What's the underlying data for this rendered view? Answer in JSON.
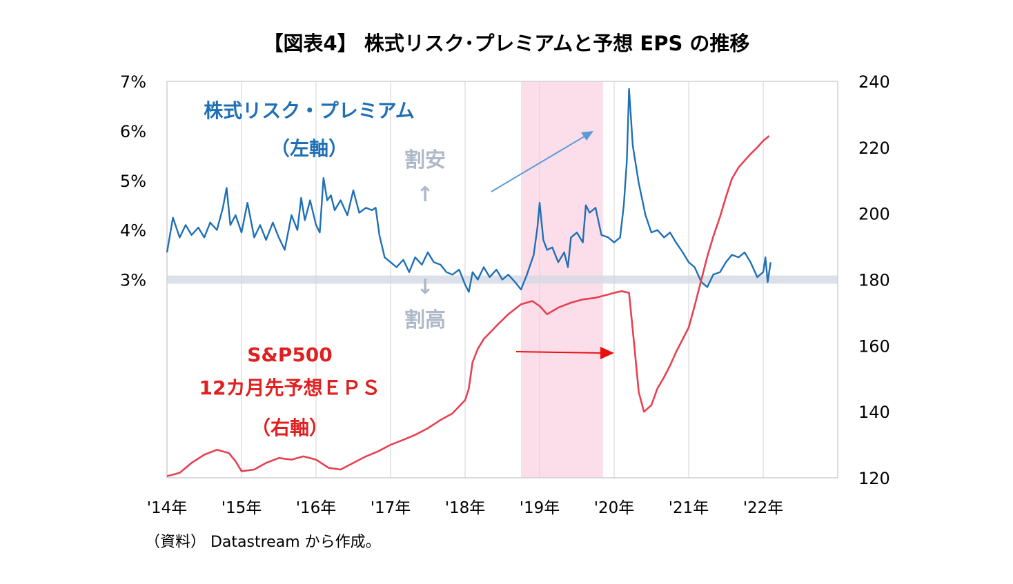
{
  "title": "【図表4】 株式リスク･プレミアムと予想 EPS の推移",
  "source": "（資料） Datastream から作成。",
  "colors": {
    "erp": "#1f6fb6",
    "eps": "#e84050",
    "shade": "#fbd8e8",
    "band": "#d3d9e4",
    "arrow_blue": "#5b9bd5",
    "arrow_red": "#e81010",
    "annotation_gray": "#aeb8c8"
  },
  "annotations": {
    "erp_name_1": "株式リスク・プレミアム",
    "erp_name_2": "（左軸）",
    "eps_name_1": "S&P500",
    "eps_name_2": "12カ月先予想ＥＰＳ",
    "eps_name_3": "（右軸）",
    "cheap_label": "割安",
    "cheap_arrow": "↑",
    "expensive_arrow": "↓",
    "expensive_label": "割高"
  },
  "chart_data": {
    "type": "line",
    "title": "【図表4】 株式リスク･プレミアムと予想 EPS の推移",
    "x_ticks": [
      "'14年",
      "'15年",
      "'16年",
      "'17年",
      "'18年",
      "'19年",
      "'20年",
      "'21年",
      "'22年"
    ],
    "xlim": [
      2014.0,
      2023.0
    ],
    "y_left_ticks": [
      "7%",
      "6%",
      "5%",
      "4%",
      "3%"
    ],
    "y_left_range": [
      -1,
      7
    ],
    "y_right_ticks": [
      "240",
      "220",
      "200",
      "180",
      "160",
      "140",
      "120"
    ],
    "y_right_range": [
      120,
      240
    ],
    "reference_band_y_left": 3.0,
    "shaded_period": [
      2018.75,
      2019.85
    ],
    "grid": "vertical",
    "series": [
      {
        "name": "株式リスク・プレミアム",
        "axis": "left",
        "points": [
          [
            2014.0,
            3.55
          ],
          [
            2014.08,
            4.25
          ],
          [
            2014.17,
            3.85
          ],
          [
            2014.25,
            4.1
          ],
          [
            2014.33,
            3.9
          ],
          [
            2014.42,
            4.05
          ],
          [
            2014.5,
            3.85
          ],
          [
            2014.58,
            4.15
          ],
          [
            2014.67,
            4.0
          ],
          [
            2014.75,
            4.45
          ],
          [
            2014.8,
            4.85
          ],
          [
            2014.85,
            4.1
          ],
          [
            2014.92,
            4.3
          ],
          [
            2015.0,
            3.95
          ],
          [
            2015.08,
            4.55
          ],
          [
            2015.17,
            3.85
          ],
          [
            2015.25,
            4.1
          ],
          [
            2015.33,
            3.8
          ],
          [
            2015.42,
            4.15
          ],
          [
            2015.5,
            3.85
          ],
          [
            2015.58,
            3.6
          ],
          [
            2015.67,
            4.3
          ],
          [
            2015.75,
            4.0
          ],
          [
            2015.8,
            4.65
          ],
          [
            2015.85,
            4.2
          ],
          [
            2015.92,
            4.6
          ],
          [
            2016.0,
            4.1
          ],
          [
            2016.05,
            3.95
          ],
          [
            2016.1,
            5.05
          ],
          [
            2016.15,
            4.6
          ],
          [
            2016.2,
            4.7
          ],
          [
            2016.25,
            4.4
          ],
          [
            2016.33,
            4.6
          ],
          [
            2016.42,
            4.3
          ],
          [
            2016.5,
            4.8
          ],
          [
            2016.58,
            4.35
          ],
          [
            2016.67,
            4.45
          ],
          [
            2016.75,
            4.4
          ],
          [
            2016.8,
            4.45
          ],
          [
            2016.85,
            3.9
          ],
          [
            2016.92,
            3.45
          ],
          [
            2017.0,
            3.35
          ],
          [
            2017.08,
            3.25
          ],
          [
            2017.17,
            3.4
          ],
          [
            2017.25,
            3.15
          ],
          [
            2017.33,
            3.45
          ],
          [
            2017.42,
            3.3
          ],
          [
            2017.5,
            3.55
          ],
          [
            2017.58,
            3.35
          ],
          [
            2017.67,
            3.3
          ],
          [
            2017.75,
            3.15
          ],
          [
            2017.83,
            3.1
          ],
          [
            2017.92,
            3.2
          ],
          [
            2018.0,
            2.9
          ],
          [
            2018.05,
            2.75
          ],
          [
            2018.1,
            3.15
          ],
          [
            2018.17,
            3.0
          ],
          [
            2018.25,
            3.25
          ],
          [
            2018.33,
            3.05
          ],
          [
            2018.42,
            3.2
          ],
          [
            2018.5,
            3.0
          ],
          [
            2018.58,
            3.1
          ],
          [
            2018.67,
            2.95
          ],
          [
            2018.75,
            2.8
          ],
          [
            2018.83,
            3.1
          ],
          [
            2018.92,
            3.5
          ],
          [
            2018.97,
            4.05
          ],
          [
            2019.0,
            4.55
          ],
          [
            2019.05,
            3.8
          ],
          [
            2019.1,
            3.6
          ],
          [
            2019.17,
            3.65
          ],
          [
            2019.25,
            3.35
          ],
          [
            2019.33,
            3.55
          ],
          [
            2019.38,
            3.25
          ],
          [
            2019.42,
            3.85
          ],
          [
            2019.5,
            3.95
          ],
          [
            2019.58,
            3.75
          ],
          [
            2019.62,
            4.5
          ],
          [
            2019.67,
            4.35
          ],
          [
            2019.75,
            4.45
          ],
          [
            2019.83,
            3.9
          ],
          [
            2019.92,
            3.85
          ],
          [
            2020.0,
            3.75
          ],
          [
            2020.08,
            3.85
          ],
          [
            2020.13,
            4.5
          ],
          [
            2020.17,
            5.4
          ],
          [
            2020.2,
            6.85
          ],
          [
            2020.25,
            5.7
          ],
          [
            2020.33,
            4.95
          ],
          [
            2020.42,
            4.3
          ],
          [
            2020.5,
            3.95
          ],
          [
            2020.58,
            4.0
          ],
          [
            2020.67,
            3.85
          ],
          [
            2020.75,
            3.95
          ],
          [
            2020.83,
            3.75
          ],
          [
            2020.92,
            3.55
          ],
          [
            2021.0,
            3.35
          ],
          [
            2021.08,
            3.25
          ],
          [
            2021.17,
            2.95
          ],
          [
            2021.25,
            2.85
          ],
          [
            2021.33,
            3.1
          ],
          [
            2021.42,
            3.15
          ],
          [
            2021.5,
            3.35
          ],
          [
            2021.58,
            3.5
          ],
          [
            2021.67,
            3.45
          ],
          [
            2021.75,
            3.55
          ],
          [
            2021.83,
            3.35
          ],
          [
            2021.92,
            3.05
          ],
          [
            2022.0,
            3.15
          ],
          [
            2022.03,
            3.45
          ],
          [
            2022.06,
            2.95
          ],
          [
            2022.1,
            3.35
          ]
        ]
      },
      {
        "name": "S&P500 12カ月先予想ＥＰＳ",
        "axis": "right",
        "points": [
          [
            2014.0,
            120.5
          ],
          [
            2014.17,
            121.5
          ],
          [
            2014.33,
            124.5
          ],
          [
            2014.5,
            127.0
          ],
          [
            2014.67,
            128.5
          ],
          [
            2014.83,
            127.5
          ],
          [
            2014.92,
            125.0
          ],
          [
            2015.0,
            122.0
          ],
          [
            2015.17,
            122.5
          ],
          [
            2015.33,
            124.5
          ],
          [
            2015.5,
            126.0
          ],
          [
            2015.67,
            125.5
          ],
          [
            2015.83,
            126.5
          ],
          [
            2016.0,
            125.5
          ],
          [
            2016.17,
            123.0
          ],
          [
            2016.33,
            122.5
          ],
          [
            2016.5,
            124.5
          ],
          [
            2016.67,
            126.5
          ],
          [
            2016.83,
            128.0
          ],
          [
            2017.0,
            130.0
          ],
          [
            2017.17,
            131.5
          ],
          [
            2017.33,
            133.0
          ],
          [
            2017.5,
            135.0
          ],
          [
            2017.67,
            137.5
          ],
          [
            2017.83,
            139.5
          ],
          [
            2018.0,
            143.5
          ],
          [
            2018.05,
            147.0
          ],
          [
            2018.1,
            155.0
          ],
          [
            2018.17,
            159.0
          ],
          [
            2018.25,
            162.0
          ],
          [
            2018.42,
            166.0
          ],
          [
            2018.58,
            169.5
          ],
          [
            2018.75,
            172.5
          ],
          [
            2018.9,
            173.5
          ],
          [
            2019.0,
            172.0
          ],
          [
            2019.1,
            169.5
          ],
          [
            2019.25,
            171.5
          ],
          [
            2019.42,
            173.0
          ],
          [
            2019.58,
            174.0
          ],
          [
            2019.75,
            174.5
          ],
          [
            2019.92,
            175.5
          ],
          [
            2020.0,
            176.0
          ],
          [
            2020.1,
            176.5
          ],
          [
            2020.2,
            176.0
          ],
          [
            2020.27,
            160.0
          ],
          [
            2020.33,
            146.0
          ],
          [
            2020.4,
            140.0
          ],
          [
            2020.5,
            142.0
          ],
          [
            2020.58,
            147.0
          ],
          [
            2020.67,
            150.5
          ],
          [
            2020.75,
            154.0
          ],
          [
            2020.83,
            158.0
          ],
          [
            2020.92,
            162.0
          ],
          [
            2021.0,
            165.5
          ],
          [
            2021.08,
            172.0
          ],
          [
            2021.17,
            180.0
          ],
          [
            2021.25,
            187.0
          ],
          [
            2021.33,
            193.0
          ],
          [
            2021.42,
            199.0
          ],
          [
            2021.5,
            205.0
          ],
          [
            2021.58,
            210.5
          ],
          [
            2021.67,
            214.0
          ],
          [
            2021.75,
            216.0
          ],
          [
            2021.83,
            218.0
          ],
          [
            2021.92,
            220.0
          ],
          [
            2022.0,
            222.0
          ],
          [
            2022.08,
            223.5
          ]
        ]
      }
    ]
  }
}
